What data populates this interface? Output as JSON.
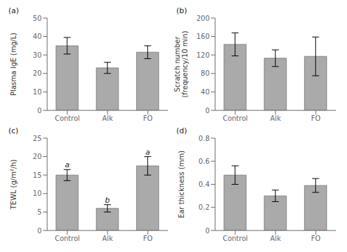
{
  "chart_data": [
    {
      "type": "bar",
      "title": "(a)",
      "ylabel": "Plasma IgE (mg/L)",
      "categories": [
        "Control",
        "Alk",
        "FO"
      ],
      "values": [
        35.0,
        23.0,
        31.5
      ],
      "errors": [
        4.5,
        3.0,
        3.5
      ],
      "color": "#aaaaaa",
      "ylim": [
        0,
        50
      ],
      "yticks": [
        0,
        10,
        20,
        30,
        40,
        50
      ],
      "grid": false
    },
    {
      "type": "bar",
      "title": "(b)",
      "ylabel": "Scratch number\n(frequency/10 min)",
      "categories": [
        "Control",
        "Alk",
        "FO"
      ],
      "values": [
        143,
        113,
        117
      ],
      "errors": [
        25,
        18,
        42
      ],
      "color": "#aaaaaa",
      "ylim": [
        0,
        200
      ],
      "yticks": [
        0,
        40,
        80,
        120,
        160,
        200
      ],
      "grid": false
    },
    {
      "type": "bar",
      "title": "(c)",
      "ylabel": "TEWL (g/m²/h)",
      "categories": [
        "Control",
        "Alk",
        "FO"
      ],
      "values": [
        15.0,
        6.0,
        17.5
      ],
      "errors": [
        1.5,
        1.0,
        2.5
      ],
      "color": "#aaaaaa",
      "ylim": [
        0,
        25
      ],
      "yticks": [
        0,
        5,
        10,
        15,
        20,
        25
      ],
      "annotations": [
        "a",
        "b",
        "a"
      ],
      "grid": false
    },
    {
      "type": "bar",
      "title": "(d)",
      "ylabel": "Ear thickness (mm)",
      "categories": [
        "Control",
        "Alk",
        "FO"
      ],
      "values": [
        0.48,
        0.3,
        0.39
      ],
      "errors": [
        0.08,
        0.05,
        0.06
      ],
      "color": "#aaaaaa",
      "ylim": [
        0,
        0.8
      ],
      "yticks": [
        0,
        0.2,
        0.4,
        0.6,
        0.8
      ],
      "grid": false
    }
  ]
}
